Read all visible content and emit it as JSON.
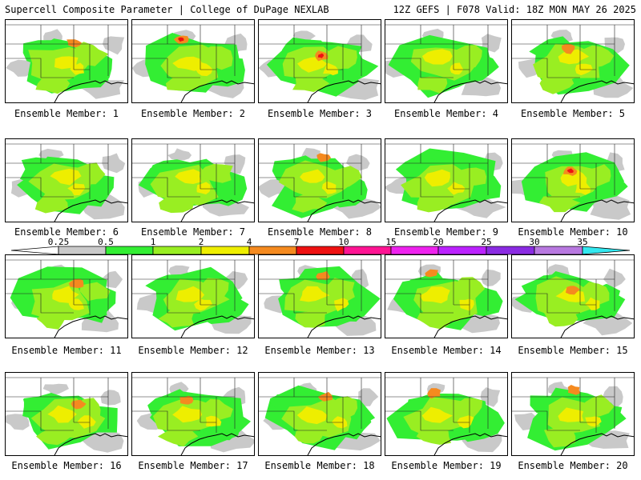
{
  "header": {
    "title_left": "Supercell Composite Parameter | College of DuPage NEXLAB",
    "title_right": "12Z GEFS | F078 Valid: 18Z MON MAY 26 2025"
  },
  "colorbar": {
    "labels": [
      "0.25",
      "0.5",
      "1",
      "2",
      "4",
      "7",
      "10",
      "15",
      "20",
      "25",
      "30",
      "35"
    ],
    "colors": [
      "#ffffff",
      "#c9c9c9",
      "#33ee33",
      "#99ee22",
      "#eeee00",
      "#f58a1f",
      "#ee1111",
      "#ff1493",
      "#ee22ee",
      "#bb22ff",
      "#8a2be2",
      "#b878e0",
      "#33e8f0"
    ]
  },
  "panels": [
    {
      "label": "Ensemble Member: 1",
      "hotspot": 1
    },
    {
      "label": "Ensemble Member: 2",
      "hotspot": 2
    },
    {
      "label": "Ensemble Member: 3",
      "hotspot": 2
    },
    {
      "label": "Ensemble Member: 4",
      "hotspot": 0
    },
    {
      "label": "Ensemble Member: 5",
      "hotspot": 1
    },
    {
      "label": "Ensemble Member: 6",
      "hotspot": 0
    },
    {
      "label": "Ensemble Member: 7",
      "hotspot": 0
    },
    {
      "label": "Ensemble Member: 8",
      "hotspot": 1
    },
    {
      "label": "Ensemble Member: 9",
      "hotspot": 0
    },
    {
      "label": "Ensemble Member: 10",
      "hotspot": 2
    },
    {
      "label": "Ensemble Member: 11",
      "hotspot": 1
    },
    {
      "label": "Ensemble Member: 12",
      "hotspot": 0
    },
    {
      "label": "Ensemble Member: 13",
      "hotspot": 1
    },
    {
      "label": "Ensemble Member: 14",
      "hotspot": 1
    },
    {
      "label": "Ensemble Member: 15",
      "hotspot": 1
    },
    {
      "label": "Ensemble Member: 16",
      "hotspot": 1
    },
    {
      "label": "Ensemble Member: 17",
      "hotspot": 1
    },
    {
      "label": "Ensemble Member: 18",
      "hotspot": 1
    },
    {
      "label": "Ensemble Member: 19",
      "hotspot": 1
    },
    {
      "label": "Ensemble Member: 20",
      "hotspot": 1
    }
  ]
}
